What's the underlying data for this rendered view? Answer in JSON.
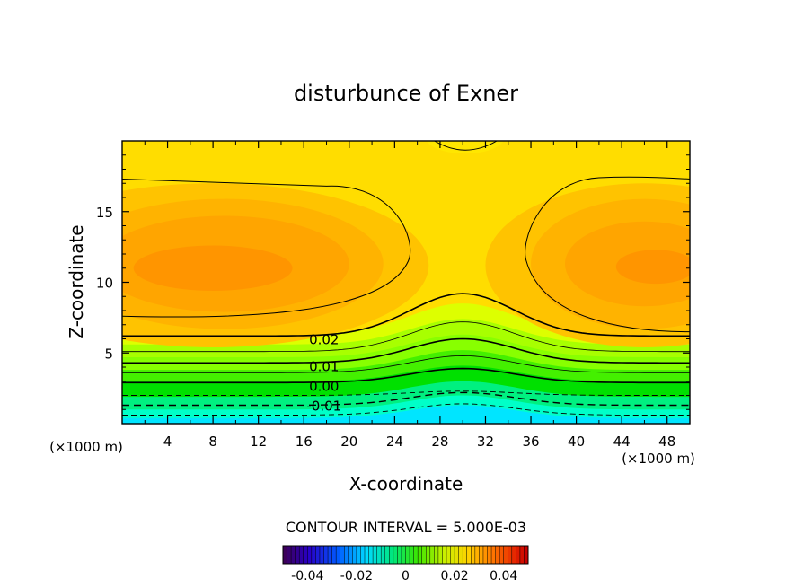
{
  "chart_data": {
    "type": "heatmap",
    "title": "disturbunce of Exner",
    "xlabel": "X-coordinate",
    "ylabel": "Z-coordinate",
    "x_unit_left": "(×1000 m)",
    "x_unit_right": "(×1000 m)",
    "xlim": [
      0,
      50
    ],
    "ylim": [
      0,
      20
    ],
    "x_ticks": [
      "4",
      "8",
      "12",
      "16",
      "20",
      "24",
      "28",
      "32",
      "36",
      "40",
      "44",
      "48"
    ],
    "y_ticks": [
      "5",
      "10",
      "15"
    ],
    "x_tick_values": [
      4,
      8,
      12,
      16,
      20,
      24,
      28,
      32,
      36,
      40,
      44,
      48
    ],
    "y_tick_values": [
      5,
      10,
      15
    ],
    "contour_labels": [
      {
        "text": "0.02",
        "x": 16.2,
        "z": 6.0
      },
      {
        "text": "0.01",
        "x": 16.2,
        "z": 4.1
      },
      {
        "text": "0.00",
        "x": 16.2,
        "z": 2.7
      },
      {
        "text": "-0.01",
        "x": 16.2,
        "z": 1.3
      }
    ],
    "contour_interval_text": "CONTOUR INTERVAL = 5.000E-03",
    "colorbar": {
      "min": -0.05,
      "max": 0.05,
      "ticks": [
        "-0.04",
        "-0.02",
        "0",
        "0.02",
        "0.04"
      ],
      "tick_values": [
        -0.04,
        -0.02,
        0,
        0.02,
        0.04
      ]
    },
    "colors": {
      "cyan": "#00e5ff",
      "green": "#00e800",
      "yellow_green": "#a8ff00",
      "yellow": "#ffdd00",
      "orange": "#ffa500",
      "dark_orange": "#ff7f00"
    }
  }
}
